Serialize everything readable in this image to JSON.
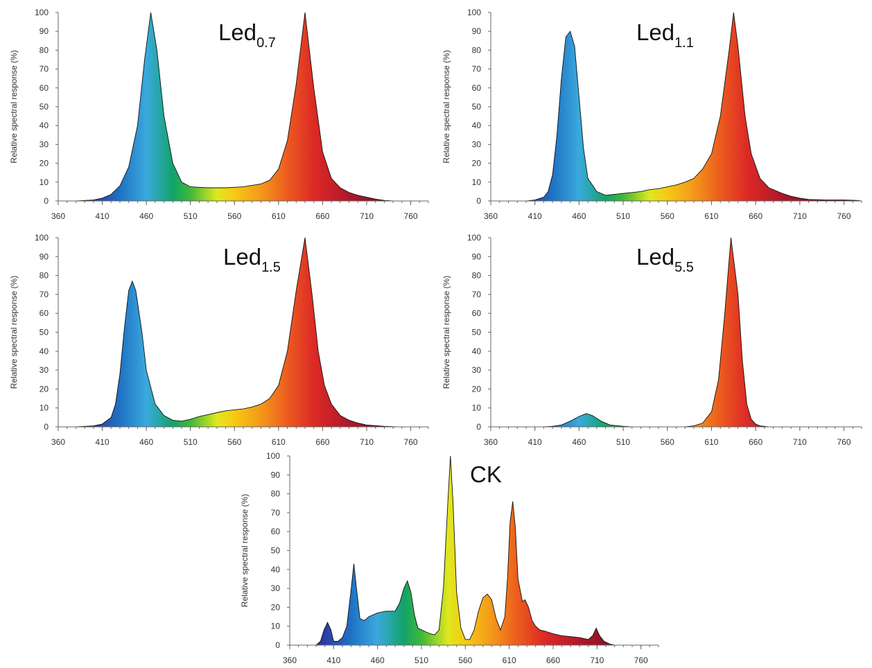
{
  "chart_data": [
    {
      "id": "led07",
      "type": "area",
      "label": {
        "main": "Led",
        "sub": "0.7"
      },
      "ylabel": "Relative spectral response (%)",
      "xlim": [
        360,
        780
      ],
      "ylim": [
        0,
        100
      ],
      "xticks": [
        360,
        410,
        460,
        510,
        560,
        610,
        660,
        710,
        760
      ],
      "yticks": [
        0,
        10,
        20,
        30,
        40,
        50,
        60,
        70,
        80,
        90,
        100
      ],
      "points": [
        [
          360,
          0
        ],
        [
          380,
          0
        ],
        [
          400,
          0.5
        ],
        [
          410,
          1.5
        ],
        [
          420,
          3.5
        ],
        [
          430,
          8
        ],
        [
          440,
          18
        ],
        [
          450,
          40
        ],
        [
          458,
          75
        ],
        [
          465,
          100
        ],
        [
          472,
          80
        ],
        [
          480,
          45
        ],
        [
          490,
          20
        ],
        [
          500,
          10
        ],
        [
          510,
          7.5
        ],
        [
          530,
          7
        ],
        [
          550,
          7
        ],
        [
          570,
          7.5
        ],
        [
          590,
          9
        ],
        [
          600,
          11
        ],
        [
          610,
          17
        ],
        [
          620,
          32
        ],
        [
          630,
          62
        ],
        [
          640,
          100
        ],
        [
          650,
          60
        ],
        [
          660,
          26
        ],
        [
          670,
          12
        ],
        [
          680,
          7
        ],
        [
          690,
          4.5
        ],
        [
          700,
          3
        ],
        [
          710,
          2
        ],
        [
          720,
          1
        ],
        [
          730,
          0.3
        ],
        [
          740,
          0
        ]
      ]
    },
    {
      "id": "led11",
      "type": "area",
      "label": {
        "main": "Led",
        "sub": "1.1"
      },
      "ylabel": "Relative spectral response (%)",
      "xlim": [
        360,
        780
      ],
      "ylim": [
        0,
        100
      ],
      "xticks": [
        360,
        410,
        460,
        510,
        560,
        610,
        660,
        710,
        760
      ],
      "yticks": [
        0,
        10,
        20,
        30,
        40,
        50,
        60,
        70,
        80,
        90,
        100
      ],
      "points": [
        [
          360,
          0
        ],
        [
          400,
          0
        ],
        [
          410,
          0.5
        ],
        [
          420,
          2
        ],
        [
          425,
          5
        ],
        [
          430,
          14
        ],
        [
          435,
          35
        ],
        [
          440,
          65
        ],
        [
          445,
          87
        ],
        [
          450,
          90
        ],
        [
          455,
          82
        ],
        [
          460,
          55
        ],
        [
          465,
          28
        ],
        [
          470,
          12
        ],
        [
          480,
          5
        ],
        [
          490,
          3
        ],
        [
          500,
          3.5
        ],
        [
          510,
          4
        ],
        [
          520,
          4.5
        ],
        [
          530,
          5
        ],
        [
          540,
          6
        ],
        [
          550,
          6.5
        ],
        [
          560,
          7.5
        ],
        [
          570,
          8.5
        ],
        [
          580,
          10
        ],
        [
          590,
          12
        ],
        [
          600,
          17
        ],
        [
          610,
          25
        ],
        [
          620,
          45
        ],
        [
          630,
          80
        ],
        [
          635,
          100
        ],
        [
          640,
          82
        ],
        [
          648,
          45
        ],
        [
          655,
          25
        ],
        [
          665,
          12
        ],
        [
          675,
          7
        ],
        [
          690,
          4
        ],
        [
          700,
          2.5
        ],
        [
          710,
          1.5
        ],
        [
          720,
          0.8
        ],
        [
          740,
          0.5
        ],
        [
          760,
          0.5
        ],
        [
          775,
          0.3
        ],
        [
          780,
          0
        ]
      ]
    },
    {
      "id": "led15",
      "type": "area",
      "label": {
        "main": "Led",
        "sub": "1.5"
      },
      "ylabel": "Relative spectral response (%)",
      "xlim": [
        360,
        780
      ],
      "ylim": [
        0,
        100
      ],
      "xticks": [
        360,
        410,
        460,
        510,
        560,
        610,
        660,
        710,
        760
      ],
      "yticks": [
        0,
        10,
        20,
        30,
        40,
        50,
        60,
        70,
        80,
        90,
        100
      ],
      "points": [
        [
          360,
          0
        ],
        [
          380,
          0
        ],
        [
          400,
          0.5
        ],
        [
          410,
          1.5
        ],
        [
          420,
          5
        ],
        [
          425,
          12
        ],
        [
          430,
          28
        ],
        [
          435,
          52
        ],
        [
          440,
          72
        ],
        [
          444,
          77
        ],
        [
          448,
          72
        ],
        [
          455,
          50
        ],
        [
          460,
          30
        ],
        [
          470,
          12
        ],
        [
          480,
          6
        ],
        [
          490,
          3.5
        ],
        [
          500,
          3
        ],
        [
          510,
          4
        ],
        [
          520,
          5.5
        ],
        [
          530,
          6.5
        ],
        [
          540,
          7.5
        ],
        [
          550,
          8.5
        ],
        [
          560,
          9
        ],
        [
          570,
          9.5
        ],
        [
          580,
          10.5
        ],
        [
          590,
          12
        ],
        [
          600,
          15
        ],
        [
          610,
          22
        ],
        [
          620,
          40
        ],
        [
          630,
          72
        ],
        [
          640,
          100
        ],
        [
          648,
          70
        ],
        [
          655,
          40
        ],
        [
          662,
          22
        ],
        [
          670,
          12
        ],
        [
          680,
          6
        ],
        [
          690,
          3.5
        ],
        [
          700,
          2
        ],
        [
          710,
          1
        ],
        [
          730,
          0.3
        ],
        [
          745,
          0
        ]
      ]
    },
    {
      "id": "led55",
      "type": "area",
      "label": {
        "main": "Led",
        "sub": "5.5"
      },
      "ylabel": "Relative spectral response (%)",
      "xlim": [
        360,
        780
      ],
      "ylim": [
        0,
        100
      ],
      "xticks": [
        360,
        410,
        460,
        510,
        560,
        610,
        660,
        710,
        760
      ],
      "yticks": [
        0,
        10,
        20,
        30,
        40,
        50,
        60,
        70,
        80,
        90,
        100
      ],
      "points": [
        [
          360,
          0
        ],
        [
          420,
          0
        ],
        [
          430,
          0.3
        ],
        [
          440,
          1
        ],
        [
          450,
          3
        ],
        [
          460,
          5.5
        ],
        [
          468,
          7
        ],
        [
          475,
          6
        ],
        [
          485,
          3
        ],
        [
          495,
          1
        ],
        [
          510,
          0.3
        ],
        [
          520,
          0
        ],
        [
          580,
          0
        ],
        [
          590,
          0.5
        ],
        [
          600,
          2
        ],
        [
          610,
          8
        ],
        [
          618,
          25
        ],
        [
          625,
          60
        ],
        [
          632,
          100
        ],
        [
          640,
          70
        ],
        [
          645,
          35
        ],
        [
          650,
          12
        ],
        [
          655,
          4
        ],
        [
          660,
          1.5
        ],
        [
          665,
          0.5
        ],
        [
          675,
          0
        ]
      ]
    },
    {
      "id": "ck",
      "type": "area",
      "label": {
        "main": "CK",
        "sub": ""
      },
      "ylabel": "Relative spectral response (%)",
      "xlim": [
        360,
        780
      ],
      "ylim": [
        0,
        100
      ],
      "xticks": [
        360,
        410,
        460,
        510,
        560,
        610,
        660,
        710,
        760
      ],
      "yticks": [
        0,
        10,
        20,
        30,
        40,
        50,
        60,
        70,
        80,
        90,
        100
      ],
      "points": [
        [
          360,
          0
        ],
        [
          390,
          0
        ],
        [
          395,
          2
        ],
        [
          399,
          8
        ],
        [
          403,
          12
        ],
        [
          407,
          8
        ],
        [
          410,
          2
        ],
        [
          415,
          2
        ],
        [
          420,
          4
        ],
        [
          425,
          10
        ],
        [
          430,
          30
        ],
        [
          433,
          43
        ],
        [
          436,
          30
        ],
        [
          440,
          14
        ],
        [
          445,
          13
        ],
        [
          450,
          15
        ],
        [
          460,
          17
        ],
        [
          470,
          18
        ],
        [
          480,
          18
        ],
        [
          485,
          22
        ],
        [
          490,
          30
        ],
        [
          494,
          34
        ],
        [
          498,
          28
        ],
        [
          502,
          16
        ],
        [
          506,
          9
        ],
        [
          515,
          7
        ],
        [
          520,
          6
        ],
        [
          525,
          5.5
        ],
        [
          530,
          8
        ],
        [
          535,
          30
        ],
        [
          540,
          75
        ],
        [
          543,
          100
        ],
        [
          546,
          75
        ],
        [
          550,
          28
        ],
        [
          555,
          9
        ],
        [
          560,
          3
        ],
        [
          565,
          3
        ],
        [
          570,
          8
        ],
        [
          575,
          18
        ],
        [
          580,
          25
        ],
        [
          585,
          27
        ],
        [
          590,
          24
        ],
        [
          595,
          14
        ],
        [
          600,
          8
        ],
        [
          605,
          15
        ],
        [
          608,
          35
        ],
        [
          611,
          65
        ],
        [
          614,
          76
        ],
        [
          617,
          62
        ],
        [
          620,
          35
        ],
        [
          625,
          23
        ],
        [
          628,
          24
        ],
        [
          632,
          20
        ],
        [
          636,
          13
        ],
        [
          640,
          10
        ],
        [
          645,
          8
        ],
        [
          650,
          7.5
        ],
        [
          660,
          6
        ],
        [
          670,
          5
        ],
        [
          680,
          4.5
        ],
        [
          690,
          4
        ],
        [
          700,
          3
        ],
        [
          705,
          5
        ],
        [
          709,
          9
        ],
        [
          713,
          5
        ],
        [
          718,
          2
        ],
        [
          725,
          0.5
        ],
        [
          730,
          0
        ]
      ]
    }
  ]
}
